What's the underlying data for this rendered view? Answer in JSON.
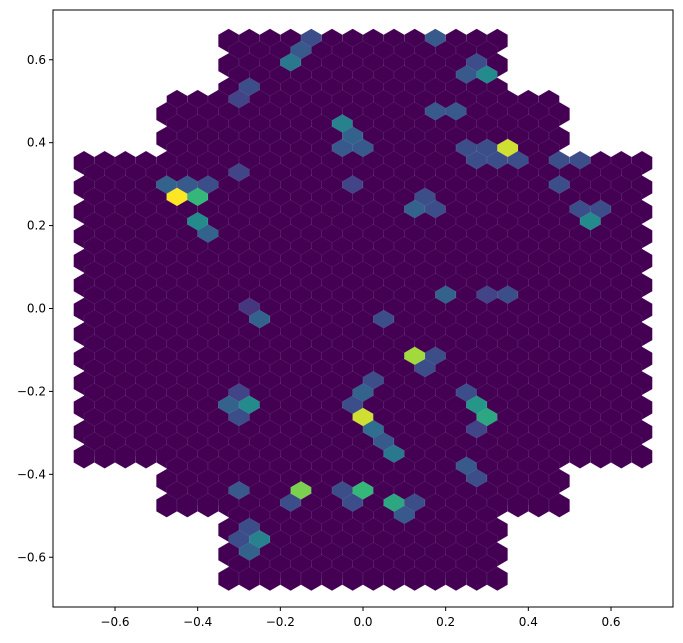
{
  "chart_data": {
    "type": "heatmap",
    "subtype": "hexbin",
    "title": "",
    "xlabel": "",
    "ylabel": "",
    "xlim": [
      -0.75,
      0.75
    ],
    "ylim": [
      -0.72,
      0.72
    ],
    "xticks": [
      -0.6,
      -0.4,
      -0.2,
      0.0,
      0.2,
      0.4,
      0.6
    ],
    "yticks": [
      -0.6,
      -0.4,
      -0.2,
      0.0,
      0.2,
      0.4,
      0.6
    ],
    "xtick_labels": [
      "−0.6",
      "−0.4",
      "−0.2",
      "0.0",
      "0.2",
      "0.4",
      "0.6"
    ],
    "ytick_labels": [
      "−0.6",
      "−0.4",
      "−0.2",
      "0.0",
      "0.2",
      "0.4",
      "0.6"
    ],
    "grid": false,
    "colormap": "viridis",
    "background_level": 0.0,
    "hexbin_extent": {
      "x_min": -0.675,
      "x_max": 0.675,
      "y_min": -0.646,
      "y_max": 0.646,
      "hex_spacing_x": 0.05,
      "row_spacing_y": 0.0295,
      "center_x_min": -0.675,
      "center_x_max": 0.675,
      "rows": [
        {
          "y": 0.646,
          "xmin": -0.325,
          "xmax": 0.325
        },
        {
          "y": 0.617,
          "xmin": -0.3,
          "xmax": 0.3
        },
        {
          "y": 0.587,
          "xmin": -0.325,
          "xmax": 0.325
        },
        {
          "y": 0.558,
          "xmin": -0.3,
          "xmax": 0.3
        },
        {
          "y": 0.528,
          "xmin": -0.325,
          "xmax": 0.325
        },
        {
          "y": 0.499,
          "xmin": -0.5,
          "xmax": 0.5
        },
        {
          "y": 0.469,
          "xmin": -0.475,
          "xmax": 0.475
        },
        {
          "y": 0.44,
          "xmin": -0.5,
          "xmax": 0.5
        },
        {
          "y": 0.41,
          "xmin": -0.475,
          "xmax": 0.475
        },
        {
          "y": 0.381,
          "xmin": -0.5,
          "xmax": 0.5
        },
        {
          "y": 0.352,
          "xmin": -0.675,
          "xmax": 0.675
        },
        {
          "y": 0.322,
          "xmin": -0.65,
          "xmax": 0.65
        }
      ]
    },
    "hot_cells": [
      {
        "x": -0.45,
        "y": 0.27,
        "value": 1.0
      },
      {
        "x": -0.4,
        "y": 0.275,
        "value": 0.75
      },
      {
        "x": -0.475,
        "y": 0.29,
        "value": 0.4
      },
      {
        "x": -0.425,
        "y": 0.3,
        "value": 0.35
      },
      {
        "x": -0.375,
        "y": 0.3,
        "value": 0.3
      },
      {
        "x": -0.4,
        "y": 0.2,
        "value": 0.6
      },
      {
        "x": -0.375,
        "y": 0.17,
        "value": 0.4
      },
      {
        "x": -0.5,
        "y": 0.06,
        "value": 0.6
      },
      {
        "x": -0.525,
        "y": 0.09,
        "value": 0.35
      },
      {
        "x": -0.275,
        "y": 0.31,
        "value": 0.6
      },
      {
        "x": -0.3,
        "y": 0.31,
        "value": 0.25
      },
      {
        "x": -0.05,
        "y": 0.345,
        "value": 0.55
      },
      {
        "x": -0.075,
        "y": 0.39,
        "value": 0.4
      },
      {
        "x": -0.025,
        "y": 0.42,
        "value": 0.4
      },
      {
        "x": -0.05,
        "y": 0.45,
        "value": 0.55
      },
      {
        "x": -0.025,
        "y": 0.38,
        "value": 0.35
      },
      {
        "x": 0.0,
        "y": 0.23,
        "value": 0.7
      },
      {
        "x": -0.025,
        "y": 0.28,
        "value": 0.25
      },
      {
        "x": 0.0,
        "y": 0.53,
        "value": 0.7
      },
      {
        "x": 0.025,
        "y": 0.56,
        "value": 0.25
      },
      {
        "x": -0.175,
        "y": 0.59,
        "value": 0.5
      },
      {
        "x": -0.15,
        "y": 0.62,
        "value": 0.35
      },
      {
        "x": -0.125,
        "y": 0.64,
        "value": 0.3
      },
      {
        "x": -0.275,
        "y": 0.53,
        "value": 0.3
      },
      {
        "x": -0.3,
        "y": 0.5,
        "value": 0.25
      },
      {
        "x": 0.2,
        "y": 0.53,
        "value": 0.9
      },
      {
        "x": 0.2,
        "y": 0.59,
        "value": 0.4
      },
      {
        "x": 0.175,
        "y": 0.56,
        "value": 0.45
      },
      {
        "x": 0.175,
        "y": 0.64,
        "value": 0.35
      },
      {
        "x": 0.25,
        "y": 0.56,
        "value": 0.35
      },
      {
        "x": 0.3,
        "y": 0.56,
        "value": 0.6
      },
      {
        "x": 0.275,
        "y": 0.59,
        "value": 0.3
      },
      {
        "x": 0.2,
        "y": 0.47,
        "value": 0.35
      },
      {
        "x": 0.225,
        "y": 0.5,
        "value": 0.4
      },
      {
        "x": 0.325,
        "y": 0.38,
        "value": 0.95
      },
      {
        "x": 0.3,
        "y": 0.35,
        "value": 0.75
      },
      {
        "x": 0.275,
        "y": 0.38,
        "value": 0.3
      },
      {
        "x": 0.275,
        "y": 0.35,
        "value": 0.3
      },
      {
        "x": 0.35,
        "y": 0.35,
        "value": 0.3
      },
      {
        "x": 0.375,
        "y": 0.31,
        "value": 0.3
      },
      {
        "x": 0.2,
        "y": 0.165,
        "value": 1.0
      },
      {
        "x": 0.175,
        "y": 0.2,
        "value": 0.35
      },
      {
        "x": 0.225,
        "y": 0.2,
        "value": 0.3
      },
      {
        "x": 0.125,
        "y": 0.23,
        "value": 0.4
      },
      {
        "x": 0.15,
        "y": 0.26,
        "value": 0.3
      },
      {
        "x": 0.175,
        "y": 0.23,
        "value": 0.3
      },
      {
        "x": 0.125,
        "y": 0.09,
        "value": 0.65
      },
      {
        "x": 0.2,
        "y": 0.025,
        "value": 0.4
      },
      {
        "x": 0.55,
        "y": 0.2,
        "value": 0.6
      },
      {
        "x": 0.525,
        "y": 0.23,
        "value": 0.3
      },
      {
        "x": 0.575,
        "y": 0.23,
        "value": 0.3
      },
      {
        "x": 0.55,
        "y": 0.29,
        "value": 0.3
      },
      {
        "x": 0.525,
        "y": 0.32,
        "value": 0.3
      },
      {
        "x": 0.475,
        "y": 0.29,
        "value": 0.3
      },
      {
        "x": 0.5,
        "y": 0.35,
        "value": 0.3
      },
      {
        "x": 0.45,
        "y": 0.11,
        "value": 0.35
      },
      {
        "x": 0.425,
        "y": 0.14,
        "value": 0.35
      },
      {
        "x": 0.375,
        "y": 0.025,
        "value": 0.5
      },
      {
        "x": 0.4,
        "y": 0.05,
        "value": 0.35
      },
      {
        "x": 0.35,
        "y": 0.025,
        "value": 0.3
      },
      {
        "x": 0.3,
        "y": 0.025,
        "value": 0.25
      },
      {
        "x": 0.5,
        "y": -0.05,
        "value": 0.95
      },
      {
        "x": 0.45,
        "y": -0.05,
        "value": 0.3
      },
      {
        "x": 0.475,
        "y": -0.08,
        "value": 0.25
      },
      {
        "x": 0.525,
        "y": -0.08,
        "value": 0.25
      },
      {
        "x": -0.25,
        "y": -0.02,
        "value": 0.4
      },
      {
        "x": -0.325,
        "y": -0.02,
        "value": 0.3
      },
      {
        "x": -0.275,
        "y": 0.0,
        "value": 0.2
      },
      {
        "x": 0.05,
        "y": -0.02,
        "value": 0.3
      },
      {
        "x": -0.15,
        "y": -0.19,
        "value": 0.35
      },
      {
        "x": -0.175,
        "y": -0.16,
        "value": 0.4
      },
      {
        "x": -0.125,
        "y": -0.16,
        "value": 0.3
      },
      {
        "x": 0.125,
        "y": -0.125,
        "value": 0.9
      },
      {
        "x": 0.15,
        "y": -0.16,
        "value": 0.3
      },
      {
        "x": 0.175,
        "y": -0.125,
        "value": 0.3
      },
      {
        "x": -0.15,
        "y": -0.235,
        "value": 1.0
      },
      {
        "x": -0.175,
        "y": -0.27,
        "value": 0.3
      },
      {
        "x": -0.125,
        "y": -0.27,
        "value": 0.3
      },
      {
        "x": -0.275,
        "y": -0.235,
        "value": 0.6
      },
      {
        "x": -0.325,
        "y": -0.235,
        "value": 0.4
      },
      {
        "x": -0.3,
        "y": -0.265,
        "value": 0.3
      },
      {
        "x": -0.3,
        "y": -0.205,
        "value": 0.25
      },
      {
        "x": 0.0,
        "y": -0.27,
        "value": 0.95
      },
      {
        "x": 0.0,
        "y": -0.21,
        "value": 0.4
      },
      {
        "x": 0.025,
        "y": -0.18,
        "value": 0.3
      },
      {
        "x": -0.025,
        "y": -0.24,
        "value": 0.3
      },
      {
        "x": 0.025,
        "y": -0.3,
        "value": 0.45
      },
      {
        "x": 0.05,
        "y": -0.33,
        "value": 0.35
      },
      {
        "x": 0.075,
        "y": -0.365,
        "value": 0.5
      },
      {
        "x": 0.275,
        "y": -0.235,
        "value": 0.65
      },
      {
        "x": 0.3,
        "y": -0.265,
        "value": 0.7
      },
      {
        "x": 0.25,
        "y": -0.21,
        "value": 0.3
      },
      {
        "x": 0.275,
        "y": -0.3,
        "value": 0.25
      },
      {
        "x": 0.55,
        "y": -0.3,
        "value": 0.55
      },
      {
        "x": 0.6,
        "y": -0.3,
        "value": 0.4
      },
      {
        "x": 0.575,
        "y": -0.33,
        "value": 0.3
      },
      {
        "x": 0.625,
        "y": -0.33,
        "value": 0.3
      },
      {
        "x": -0.675,
        "y": -0.27,
        "value": 0.45
      },
      {
        "x": -0.7,
        "y": -0.3,
        "value": 0.4
      },
      {
        "x": 0.25,
        "y": -0.385,
        "value": 0.35
      },
      {
        "x": 0.275,
        "y": -0.42,
        "value": 0.3
      },
      {
        "x": -0.275,
        "y": -0.455,
        "value": 0.55
      },
      {
        "x": -0.3,
        "y": -0.455,
        "value": 0.35
      },
      {
        "x": -0.15,
        "y": -0.455,
        "value": 0.85
      },
      {
        "x": -0.175,
        "y": -0.485,
        "value": 0.3
      },
      {
        "x": 0.0,
        "y": -0.455,
        "value": 0.75
      },
      {
        "x": -0.025,
        "y": -0.485,
        "value": 0.3
      },
      {
        "x": -0.05,
        "y": -0.455,
        "value": 0.3
      },
      {
        "x": 0.075,
        "y": -0.485,
        "value": 0.7
      },
      {
        "x": 0.1,
        "y": -0.515,
        "value": 0.35
      },
      {
        "x": 0.125,
        "y": -0.485,
        "value": 0.3
      },
      {
        "x": -0.2,
        "y": -0.525,
        "value": 1.0
      },
      {
        "x": -0.225,
        "y": -0.495,
        "value": 0.3
      },
      {
        "x": -0.25,
        "y": -0.56,
        "value": 0.55
      },
      {
        "x": -0.275,
        "y": -0.59,
        "value": 0.4
      },
      {
        "x": -0.3,
        "y": -0.56,
        "value": 0.3
      },
      {
        "x": -0.275,
        "y": -0.525,
        "value": 0.3
      }
    ]
  }
}
